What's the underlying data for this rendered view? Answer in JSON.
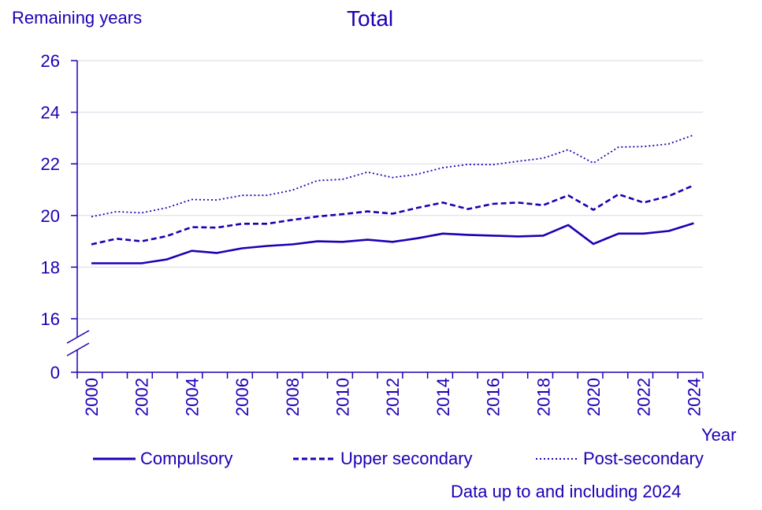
{
  "chart_data": {
    "type": "line",
    "title": "Total",
    "ylabel": "Remaining years",
    "xlabel": "Year",
    "ylim": [
      16,
      26
    ],
    "axis_break_value": 0,
    "y_ticks": [
      "26",
      "24",
      "22",
      "20",
      "18",
      "16"
    ],
    "x_ticks": [
      "2000",
      "2002",
      "2004",
      "2006",
      "2008",
      "2010",
      "2012",
      "2014",
      "2016",
      "2018",
      "2020",
      "2022",
      "2024"
    ],
    "x": [
      2000,
      2001,
      2002,
      2003,
      2004,
      2005,
      2006,
      2007,
      2008,
      2009,
      2010,
      2011,
      2012,
      2013,
      2014,
      2015,
      2016,
      2017,
      2018,
      2019,
      2020,
      2021,
      2022,
      2023,
      2024
    ],
    "grid": true,
    "series": [
      {
        "name": "Compulsory",
        "style": "solid",
        "values": [
          18.15,
          18.15,
          18.15,
          18.3,
          18.63,
          18.55,
          18.73,
          18.82,
          18.88,
          19.0,
          18.98,
          19.06,
          18.98,
          19.12,
          19.3,
          19.25,
          19.22,
          19.19,
          19.22,
          19.63,
          18.9,
          19.3,
          19.3,
          19.4,
          19.7
        ]
      },
      {
        "name": "Upper secondary",
        "style": "dashed",
        "values": [
          18.88,
          19.1,
          19.0,
          19.2,
          19.55,
          19.53,
          19.68,
          19.68,
          19.83,
          19.96,
          20.05,
          20.16,
          20.07,
          20.3,
          20.5,
          20.25,
          20.45,
          20.5,
          20.4,
          20.78,
          20.22,
          20.82,
          20.5,
          20.75,
          21.17
        ]
      },
      {
        "name": "Post-secondary",
        "style": "dotted",
        "values": [
          19.95,
          20.15,
          20.1,
          20.3,
          20.62,
          20.6,
          20.78,
          20.78,
          20.98,
          21.35,
          21.4,
          21.68,
          21.47,
          21.6,
          21.85,
          21.98,
          21.97,
          22.1,
          22.22,
          22.55,
          22.03,
          22.65,
          22.67,
          22.77,
          23.12
        ]
      }
    ]
  },
  "footnote": "Data up to and including 2024",
  "colors": {
    "line": "#1b00b4",
    "grid": "#d9d9e6",
    "axis": "#1b00b4"
  }
}
